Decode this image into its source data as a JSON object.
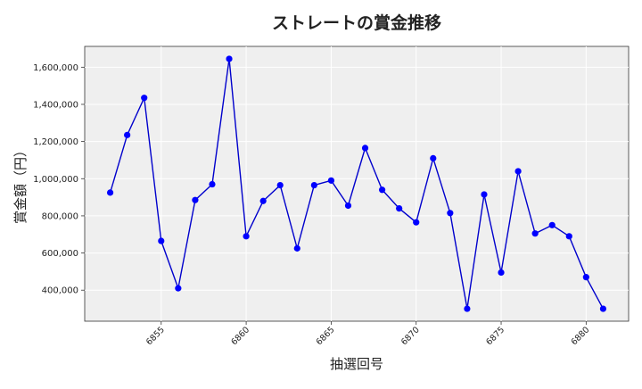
{
  "chart_data": {
    "type": "line",
    "title": "ストレートの賞金推移",
    "xlabel": "抽選回号",
    "ylabel": "賞金額（円）",
    "x_ticks": [
      6855,
      6860,
      6865,
      6870,
      6875,
      6880
    ],
    "y_ticks": [
      400000,
      600000,
      800000,
      1000000,
      1200000,
      1400000,
      1600000
    ],
    "y_tick_labels": [
      "400,000",
      "600,000",
      "800,000",
      "1,000,000",
      "1,200,000",
      "1,400,000",
      "1,600,000"
    ],
    "xlim": [
      6850.5,
      6882.5
    ],
    "ylim": [
      233000,
      1712000
    ],
    "grid": true,
    "series": [
      {
        "color": "#0000cc",
        "marker_color": "#0000ff",
        "x": [
          6852,
          6853,
          6854,
          6855,
          6856,
          6857,
          6858,
          6859,
          6860,
          6861,
          6862,
          6863,
          6864,
          6865,
          6866,
          6867,
          6868,
          6869,
          6870,
          6871,
          6872,
          6873,
          6874,
          6875,
          6876,
          6877,
          6878,
          6879,
          6880,
          6881
        ],
        "y": [
          925000,
          1235000,
          1435000,
          665000,
          410000,
          885000,
          970000,
          1645000,
          690000,
          880000,
          965000,
          625000,
          965000,
          990000,
          855000,
          1165000,
          940000,
          840000,
          765000,
          1110000,
          815000,
          300000,
          915000,
          495000,
          1040000,
          705000,
          750000,
          690000,
          470000,
          300000
        ]
      }
    ]
  }
}
